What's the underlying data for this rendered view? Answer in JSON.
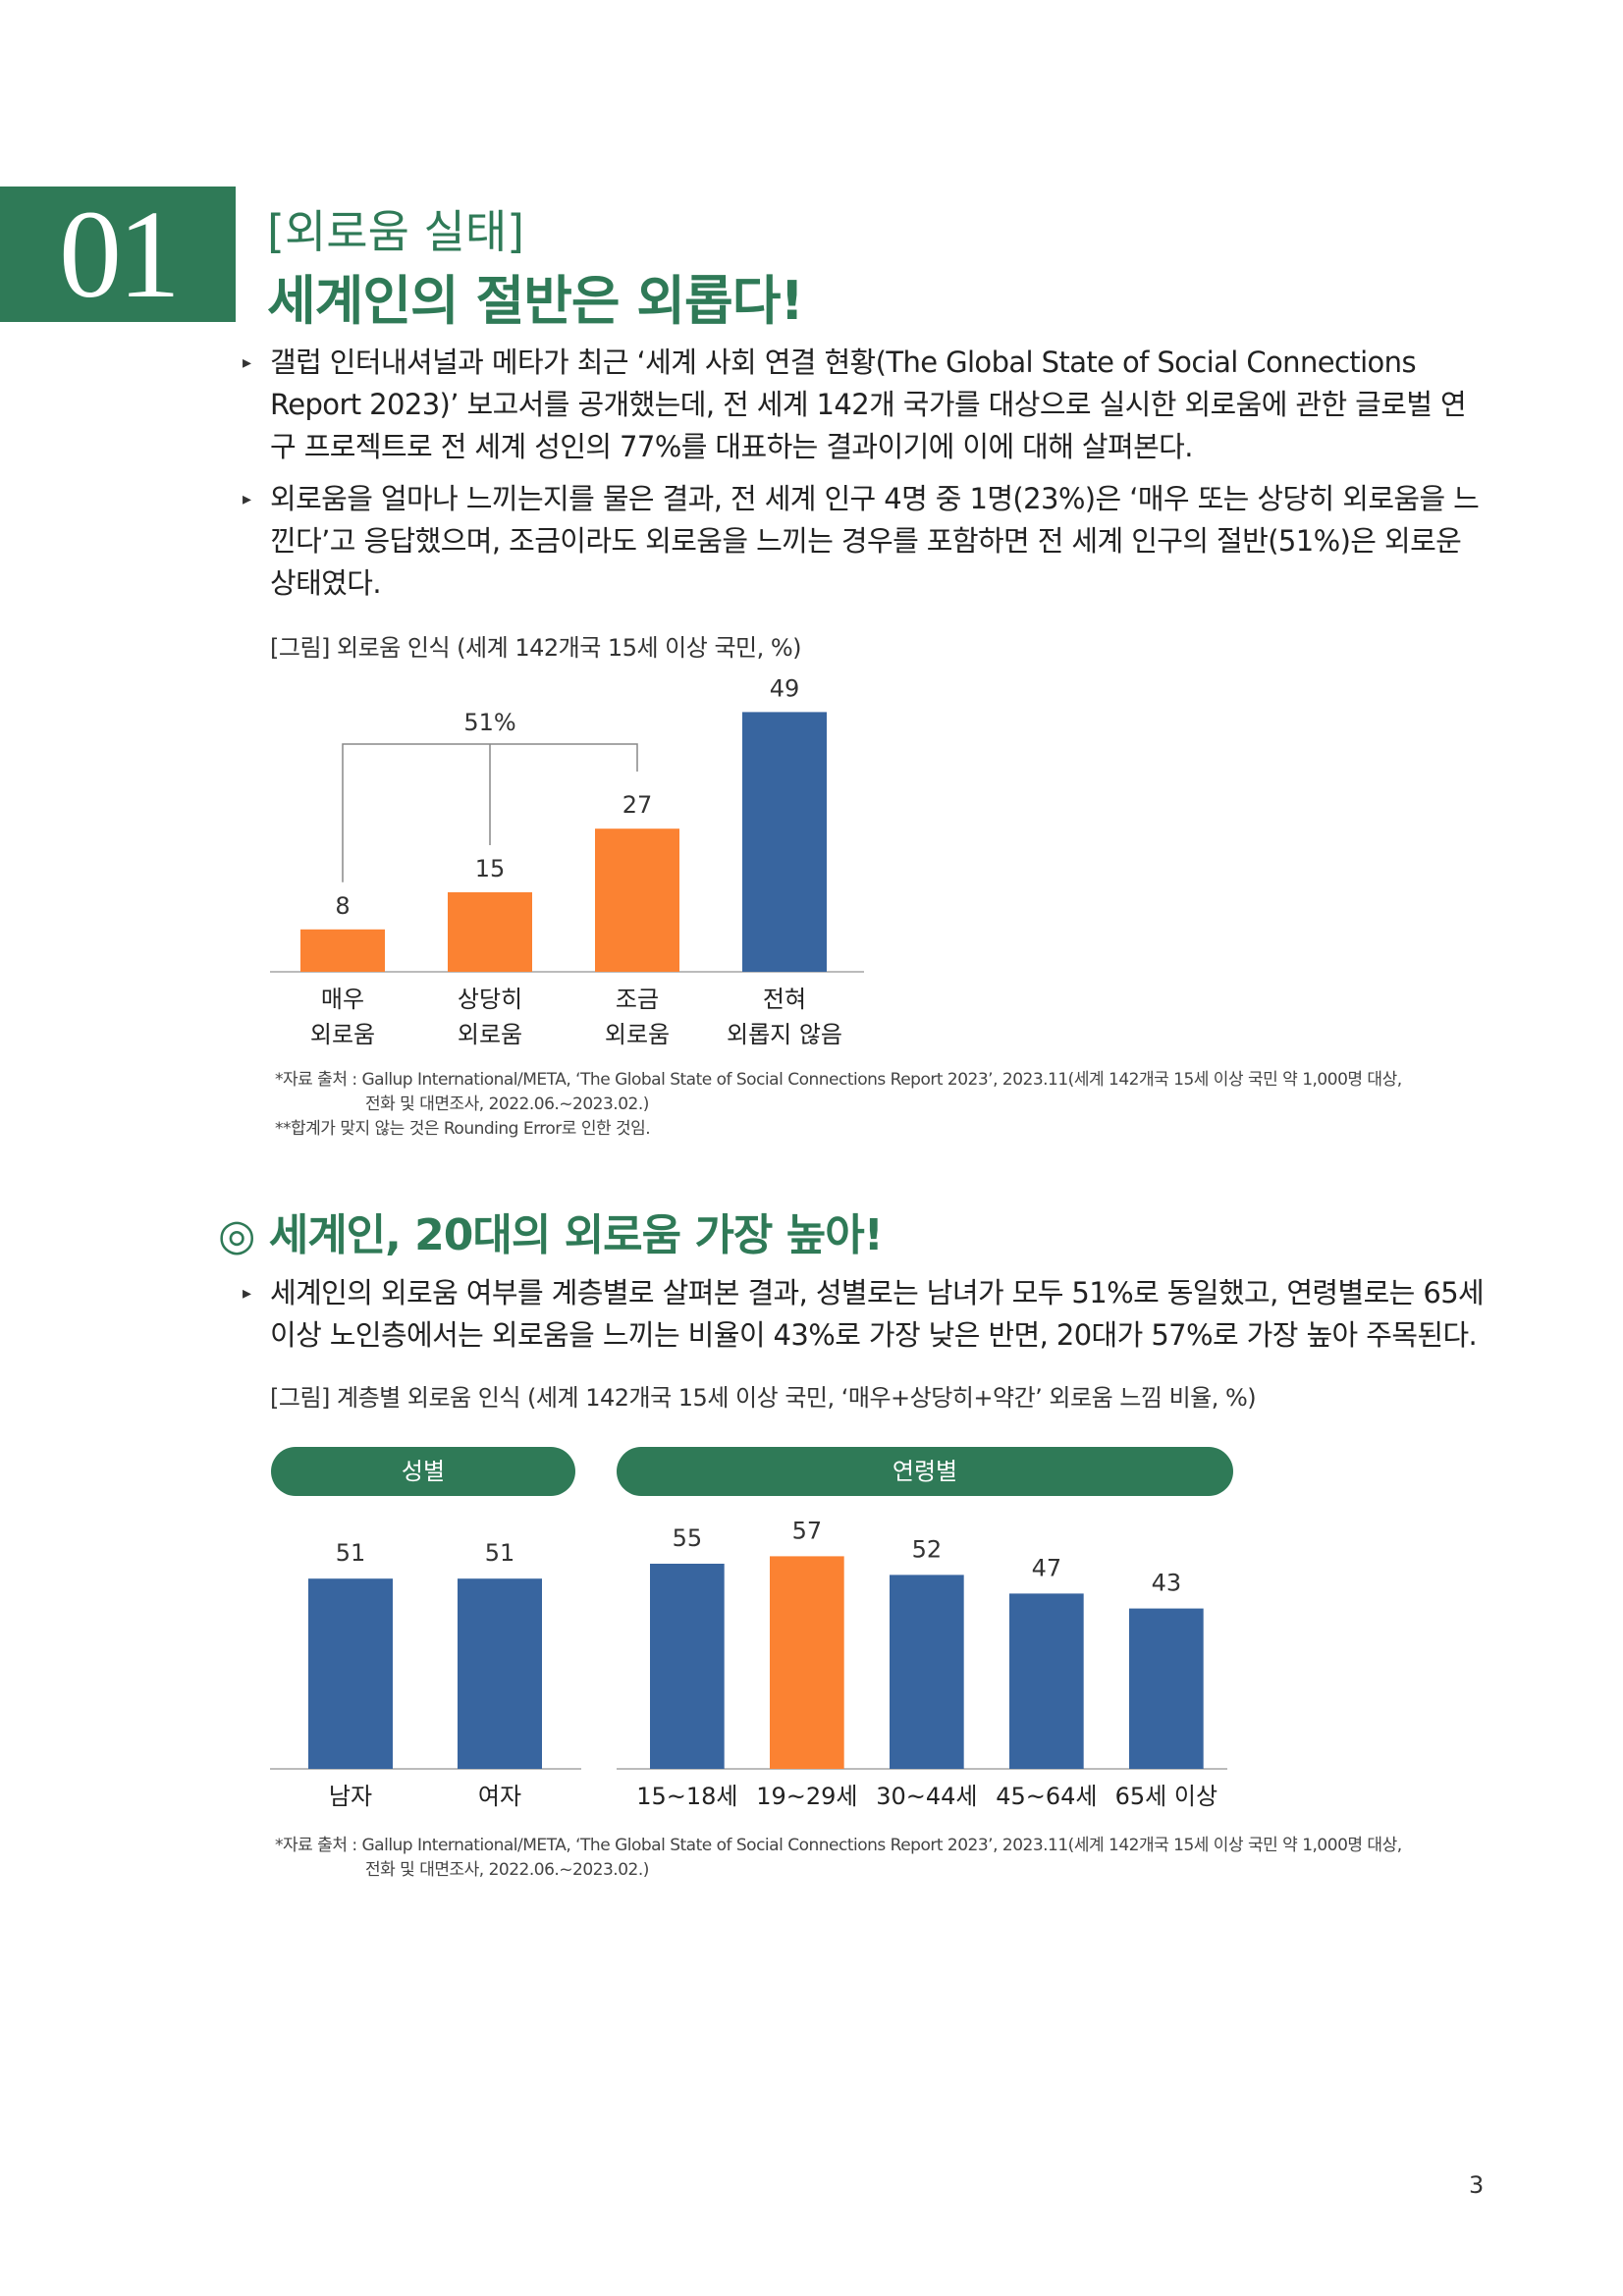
{
  "section": {
    "number": "01",
    "subtitle": "[외로움 실태]",
    "title": "세계인의 절반은 외롭다!"
  },
  "bullets": [
    "갤럽 인터내셔널과 메타가 최근 ‘세계 사회 연결 현황(The Global State of Social Connections Report 2023)’ 보고서를 공개했는데, 전 세계 142개 국가를 대상으로 실시한 외로움에 관한 글로벌 연구 프로젝트로 전 세계 성인의 77%를 대표하는 결과이기에 이에 대해 살펴본다.",
    "외로움을 얼마나 느끼는지를 물은 결과, 전 세계 인구 4명 중 1명(23%)은 ‘매우 또는 상당히 외로움을 느낀다’고 응답했으며, 조금이라도 외로움을 느끼는 경우를 포함하면 전 세계 인구의 절반(51%)은 외로운 상태였다."
  ],
  "figure1": {
    "caption": "[그림] 외로움 인식 (세계 142개국 15세 이상 국민, %)",
    "bracket_label": "51%",
    "source_lines": [
      "*자료 출처 : Gallup International/META, ‘The Global State of Social Connections Report 2023’, 2023.11(세계 142개국 15세 이상 국민 약 1,000명 대상,",
      "전화 및 대면조사, 2022.06.~2023.02.)",
      "**합계가 맞지 않는 것은 Rounding Error로 인한 것임."
    ]
  },
  "subheading": "◎ 세계인, 20대의 외로움 가장 높아!",
  "bullet3": "세계인의 외로움 여부를 계층별로 살펴본 결과, 성별로는 남녀가 모두 51%로 동일했고, 연령별로는 65세 이상 노인층에서는 외로움을 느끼는 비율이 43%로 가장 낮은 반면, 20대가 57%로 가장 높아 주목된다.",
  "figure2": {
    "caption": "[그림] 계층별 외로움 인식 (세계 142개국 15세 이상 국민, ‘매우+상당히+약간’ 외로움 느낌 비율, %)",
    "group_labels": {
      "gender": "성별",
      "age": "연령별"
    },
    "source_lines": [
      "*자료 출처 : Gallup International/META, ‘The Global State of Social Connections Report 2023’, 2023.11(세계 142개국 15세 이상 국민 약 1,000명 대상,",
      "전화 및 대면조사, 2022.06.~2023.02.)"
    ]
  },
  "page_number": "3",
  "colors": {
    "green": "#2f7a57",
    "orange": "#fb8232",
    "blue": "#38659f"
  },
  "chart_data": [
    {
      "type": "bar",
      "title": "[그림] 외로움 인식 (세계 142개국 15세 이상 국민, %)",
      "categories": [
        [
          "매우",
          "외로움"
        ],
        [
          "상당히",
          "외로움"
        ],
        [
          "조금",
          "외로움"
        ],
        [
          "전혀",
          "외롭지 않음"
        ]
      ],
      "values": [
        8,
        15,
        27,
        49
      ],
      "bar_colors": [
        "orange",
        "orange",
        "orange",
        "blue"
      ],
      "annotation": "51%",
      "ylim": [
        0,
        55
      ]
    },
    {
      "type": "bar",
      "title": "[그림] 계층별 외로움 인식 (세계 142개국 15세 이상 국민, ‘매우+상당히+약간’ 외로움 느낌 비율, %)",
      "groups": [
        {
          "label": "성별",
          "categories": [
            "남자",
            "여자"
          ],
          "values": [
            51,
            51
          ],
          "bar_colors": [
            "blue",
            "blue"
          ]
        },
        {
          "label": "연령별",
          "categories": [
            "15~18세",
            "19~29세",
            "30~44세",
            "45~64세",
            "65세 이상"
          ],
          "values": [
            55,
            57,
            52,
            47,
            43
          ],
          "bar_colors": [
            "blue",
            "orange",
            "blue",
            "blue",
            "blue"
          ]
        }
      ],
      "ylim": [
        0,
        60
      ]
    }
  ]
}
